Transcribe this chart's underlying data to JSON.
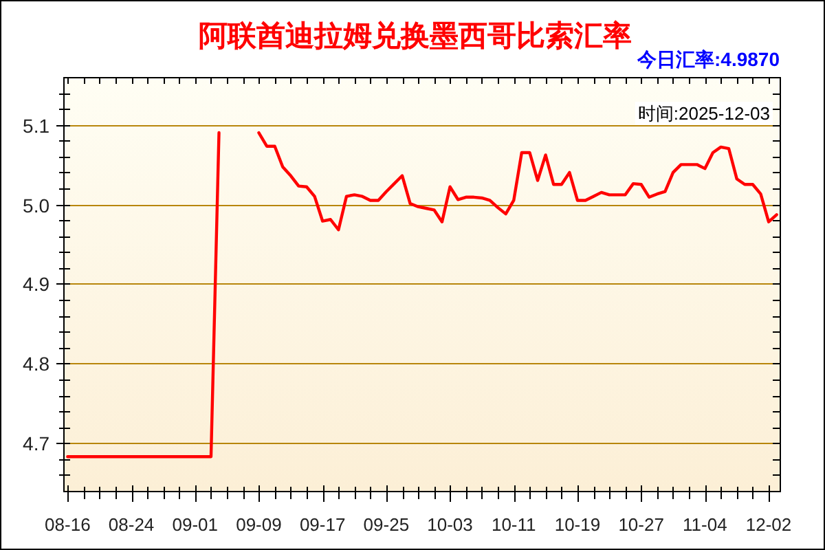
{
  "chart_data": {
    "type": "line",
    "title": "阿联酋迪拉姆兑换墨西哥比索汇率",
    "subtitle": "今日汇率:4.9870",
    "annotations": [
      "时间:2025-12-03"
    ],
    "categories": [
      "08-16",
      null,
      null,
      null,
      null,
      null,
      null,
      null,
      "08-24",
      null,
      null,
      null,
      null,
      null,
      null,
      null,
      "09-01",
      null,
      null,
      null,
      null,
      null,
      null,
      null,
      "09-09",
      null,
      null,
      null,
      null,
      null,
      null,
      null,
      "09-17",
      null,
      null,
      null,
      null,
      null,
      null,
      null,
      "09-25",
      null,
      null,
      null,
      null,
      null,
      null,
      null,
      "10-03",
      null,
      null,
      null,
      null,
      null,
      null,
      null,
      "10-11",
      null,
      null,
      null,
      null,
      null,
      null,
      null,
      "10-19",
      null,
      null,
      null,
      null,
      null,
      null,
      null,
      "10-27",
      null,
      null,
      null,
      null,
      null,
      null,
      null,
      "11-04",
      null,
      null,
      null,
      null,
      null,
      null,
      null,
      "12-02",
      null
    ],
    "series": [
      {
        "color": "#ff0000",
        "values": [
          4.683,
          4.683,
          4.683,
          4.683,
          4.683,
          4.683,
          4.683,
          4.683,
          4.683,
          4.683,
          4.683,
          4.683,
          4.683,
          4.683,
          4.683,
          4.683,
          4.683,
          4.683,
          4.683,
          5.09,
          null,
          null,
          null,
          null,
          5.09,
          5.073,
          5.073,
          5.047,
          5.036,
          5.023,
          5.022,
          5.01,
          4.979,
          4.981,
          4.968,
          5.01,
          5.012,
          5.01,
          5.005,
          5.005,
          5.016,
          5.026,
          5.036,
          5.001,
          4.997,
          4.995,
          4.993,
          4.978,
          5.022,
          5.006,
          5.009,
          5.009,
          5.008,
          5.005,
          4.996,
          4.988,
          5.005,
          5.065,
          5.065,
          5.03,
          5.062,
          5.025,
          5.025,
          5.04,
          5.005,
          5.005,
          5.01,
          5.015,
          5.012,
          5.012,
          5.012,
          5.026,
          5.025,
          5.009,
          5.013,
          5.016,
          5.04,
          5.05,
          5.05,
          5.05,
          5.045,
          5.065,
          5.072,
          5.07,
          5.032,
          5.025,
          5.025,
          5.013,
          4.978,
          4.987
        ]
      }
    ],
    "ylim": [
      4.64,
      5.16
    ],
    "yticks": [
      {
        "value": 4.66,
        "label": null
      },
      {
        "value": 4.68,
        "label": null
      },
      4.7,
      {
        "value": 4.72,
        "label": null
      },
      {
        "value": 4.74,
        "label": null
      },
      {
        "value": 4.76,
        "label": null
      },
      {
        "value": 4.78,
        "label": null
      },
      4.8,
      {
        "value": 4.82,
        "label": null
      },
      {
        "value": 4.84,
        "label": null
      },
      {
        "value": 4.86,
        "label": null
      },
      {
        "value": 4.88,
        "label": null
      },
      4.9,
      {
        "value": 4.92,
        "label": null
      },
      {
        "value": 4.94,
        "label": null
      },
      {
        "value": 4.96,
        "label": null
      },
      {
        "value": 4.98,
        "label": null
      },
      {
        "value": 5,
        "label": "5.0"
      },
      {
        "value": 5.02,
        "label": null
      },
      {
        "value": 5.04,
        "label": null
      },
      {
        "value": 5.06,
        "label": null
      },
      {
        "value": 5.08,
        "label": null
      },
      5.1,
      {
        "value": 5.12,
        "label": null
      },
      {
        "value": 5.14,
        "label": null
      }
    ],
    "grid": "y",
    "line_style": "solid"
  }
}
